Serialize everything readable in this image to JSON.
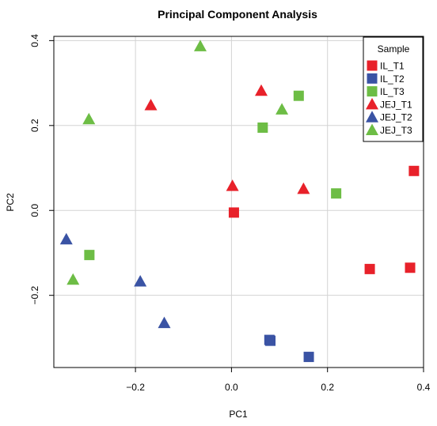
{
  "chart_data": {
    "type": "scatter",
    "title": "Principal Component Analysis",
    "xlabel": "PC1",
    "ylabel": "PC2",
    "xlim": [
      -0.37,
      0.4
    ],
    "ylim": [
      -0.37,
      0.41
    ],
    "x_ticks": [
      -0.2,
      0.0,
      0.2,
      0.4
    ],
    "x_tick_labels": [
      "−0.2",
      "0.0",
      "0.2",
      "0.4"
    ],
    "y_ticks": [
      -0.2,
      0.0,
      0.2,
      0.4
    ],
    "y_tick_labels": [
      "−0.2",
      "0.0",
      "0.2",
      "0.4"
    ],
    "grid": true,
    "legend": {
      "title": "Sample",
      "placement": "top-right"
    },
    "series": [
      {
        "name": "IL_T1",
        "color": "#e8212a",
        "marker": "square",
        "points": [
          {
            "x": 0.005,
            "y": -0.005
          },
          {
            "x": 0.38,
            "y": 0.093
          },
          {
            "x": 0.288,
            "y": -0.138
          },
          {
            "x": 0.372,
            "y": -0.135
          }
        ]
      },
      {
        "name": "IL_T2",
        "color": "#3a53a4",
        "marker": "square",
        "points": [
          {
            "x": 0.079,
            "y": -0.305
          },
          {
            "x": 0.081,
            "y": -0.307
          },
          {
            "x": 0.161,
            "y": -0.345
          }
        ]
      },
      {
        "name": "IL_T3",
        "color": "#6dbd45",
        "marker": "square",
        "points": [
          {
            "x": 0.065,
            "y": 0.195
          },
          {
            "x": 0.14,
            "y": 0.27
          },
          {
            "x": 0.218,
            "y": 0.04
          },
          {
            "x": -0.296,
            "y": -0.105
          }
        ]
      },
      {
        "name": "JEJ_T1",
        "color": "#e8212a",
        "marker": "triangle",
        "points": [
          {
            "x": 0.062,
            "y": 0.282
          },
          {
            "x": -0.168,
            "y": 0.248
          },
          {
            "x": 0.002,
            "y": 0.058
          },
          {
            "x": 0.15,
            "y": 0.051
          }
        ]
      },
      {
        "name": "JEJ_T2",
        "color": "#3a53a4",
        "marker": "triangle",
        "points": [
          {
            "x": -0.344,
            "y": -0.068
          },
          {
            "x": -0.19,
            "y": -0.167
          },
          {
            "x": -0.14,
            "y": -0.265
          }
        ]
      },
      {
        "name": "JEJ_T3",
        "color": "#6dbd45",
        "marker": "triangle",
        "points": [
          {
            "x": -0.065,
            "y": 0.387
          },
          {
            "x": -0.297,
            "y": 0.215
          },
          {
            "x": 0.105,
            "y": 0.238
          },
          {
            "x": -0.33,
            "y": -0.163
          }
        ]
      }
    ]
  }
}
